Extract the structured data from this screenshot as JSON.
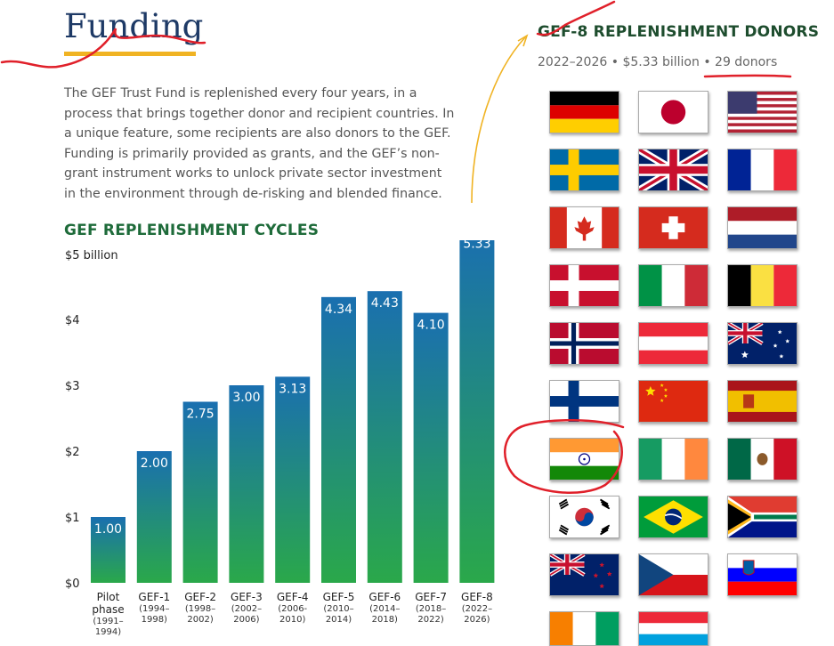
{
  "page": {
    "title": "Funding",
    "intro": "The GEF Trust Fund is replenished every four years, in a process that brings together donor and recipient countries. In a unique feature, some recipients are also donors to the GEF. Funding is primarily provided as grants, and the GEF’s non-grant instrument works to unlock private sector investment in the environment through de-risking and blended finance."
  },
  "chart_data": {
    "type": "bar",
    "title": "GEF REPLENISHMENT CYCLES",
    "ylabel": "$5 billion",
    "ylim": [
      0,
      5.5
    ],
    "yticks": [
      {
        "value": 0,
        "label": "$0"
      },
      {
        "value": 1,
        "label": "$1"
      },
      {
        "value": 2,
        "label": "$2"
      },
      {
        "value": 3,
        "label": "$3"
      },
      {
        "value": 4,
        "label": "$4"
      }
    ],
    "categories": [
      {
        "name": "Pilot phase",
        "years": "(1991– 1994)"
      },
      {
        "name": "GEF-1",
        "years": "(1994– 1998)"
      },
      {
        "name": "GEF-2",
        "years": "(1998– 2002)"
      },
      {
        "name": "GEF-3",
        "years": "(2002– 2006)"
      },
      {
        "name": "GEF-4",
        "years": "(2006- 2010)"
      },
      {
        "name": "GEF-5",
        "years": "(2010– 2014)"
      },
      {
        "name": "GEF-6",
        "years": "(2014– 2018)"
      },
      {
        "name": "GEF-7",
        "years": "(2018– 2022)"
      },
      {
        "name": "GEF-8",
        "years": "(2022– 2026)"
      }
    ],
    "values": [
      1.0,
      2.0,
      2.75,
      3.0,
      3.13,
      4.34,
      4.43,
      4.1,
      5.33
    ],
    "value_labels": [
      "1.00",
      "2.00",
      "2.75",
      "3.00",
      "3.13",
      "4.34",
      "4.43",
      "4.10",
      "5.33"
    ],
    "colors": {
      "top": "#1a6fb0",
      "bottom": "#2aa84a"
    }
  },
  "donors": {
    "heading": "GEF-8 REPLENISHMENT DONORS",
    "period": "2022–2026",
    "amount": "$5.33 billion",
    "count": "29 donors",
    "separator": "•",
    "flags": [
      "germany-flag",
      "japan-flag",
      "usa-flag",
      "sweden-flag",
      "uk-flag",
      "france-flag",
      "canada-flag",
      "switzerland-flag",
      "netherlands-flag",
      "denmark-flag",
      "italy-flag",
      "belgium-flag",
      "norway-flag",
      "austria-flag",
      "australia-flag",
      "finland-flag",
      "china-flag",
      "spain-flag",
      "india-flag",
      "ireland-flag",
      "mexico-flag",
      "south-korea-flag",
      "brazil-flag",
      "south-africa-flag",
      "new-zealand-flag",
      "czech-republic-flag",
      "slovenia-flag",
      "cote-divoire-flag",
      "luxembourg-flag"
    ]
  },
  "annotations": {
    "color": "#e0202a",
    "arrow_color": "#f0b323"
  }
}
